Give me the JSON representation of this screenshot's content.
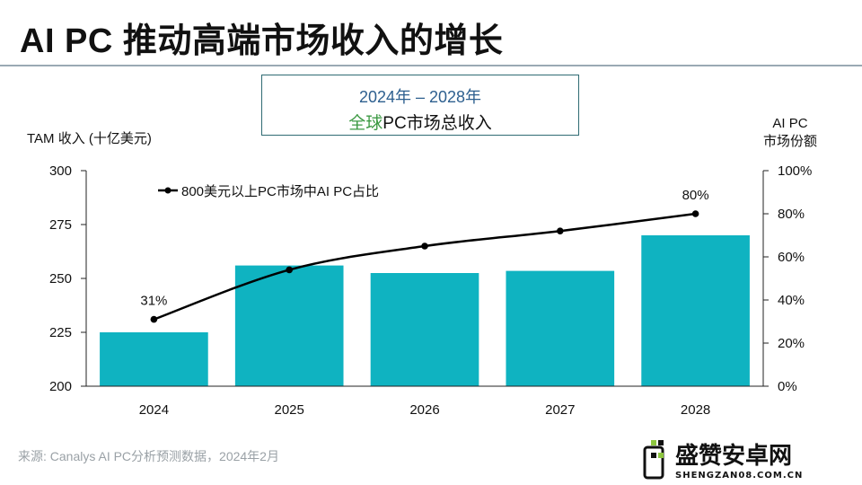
{
  "page": {
    "title": "AI PC 推动高端市场收入的增长",
    "subtitle_line1": "2024年 – 2028年",
    "subtitle_accent": "全球",
    "subtitle_rest": "PC市场总收入",
    "source": "来源: Canalys AI PC分析预测数据，2024年2月",
    "watermark": {
      "name": "盛赞安卓网",
      "url": "SHENGZAN08.COM.CN"
    }
  },
  "chart_data": {
    "type": "bar",
    "categories": [
      "2024",
      "2025",
      "2026",
      "2027",
      "2028"
    ],
    "series": [
      {
        "kind": "bar",
        "axis": "left",
        "values": [
          225,
          256,
          252.5,
          253.5,
          270
        ]
      },
      {
        "kind": "line",
        "axis": "right",
        "name": "800美元以上PC市场中AI PC占比",
        "values": [
          31,
          54,
          65,
          72,
          80
        ]
      }
    ],
    "data_labels": {
      "0": "31%",
      "4": "80%"
    },
    "ylabel_left": "TAM 收入 (十亿美元)",
    "ylabel_right_line1": "AI PC",
    "ylabel_right_line2": "市场份额",
    "ylim_left": [
      200,
      300
    ],
    "yticks_left": [
      "200",
      "225",
      "250",
      "275",
      "300"
    ],
    "ylim_right": [
      0,
      100
    ],
    "yticks_right": [
      "0%",
      "20%",
      "40%",
      "60%",
      "80%",
      "100%"
    ],
    "legend_position": "top-left",
    "grid": false,
    "colors": {
      "bar": "#0fb3c1",
      "line": "#000000"
    }
  }
}
